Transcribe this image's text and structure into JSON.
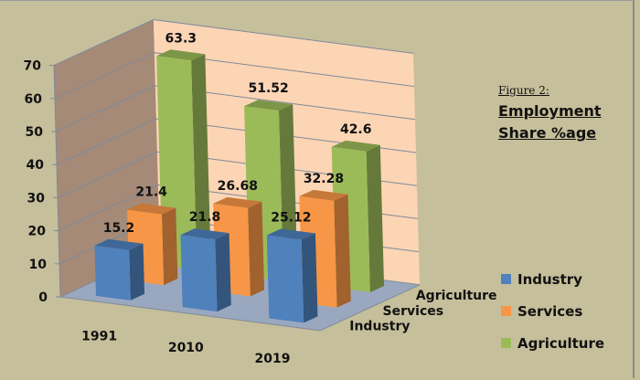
{
  "chart_data": {
    "type": "bar",
    "subtype": "3d-clustered",
    "categories": [
      "1991",
      "2010",
      "2019"
    ],
    "series": [
      {
        "name": "Industry",
        "values": [
          15.2,
          21.8,
          25.12
        ],
        "color": "#4f81bd"
      },
      {
        "name": "Services",
        "values": [
          21.4,
          26.68,
          32.28
        ],
        "color": "#f79646"
      },
      {
        "name": "Agriculture",
        "values": [
          63.3,
          51.52,
          42.6
        ],
        "color": "#9bbb59"
      }
    ],
    "depth_labels": [
      "Industry",
      "Services",
      "Agriculture"
    ],
    "yticks": [
      "0",
      "10",
      "20",
      "30",
      "40",
      "50",
      "60",
      "70"
    ],
    "ylim": [
      0,
      70
    ],
    "grid": true,
    "legend_position": "right",
    "title_lines": [
      "Figure 2:",
      "Employment",
      "Share %age"
    ]
  }
}
